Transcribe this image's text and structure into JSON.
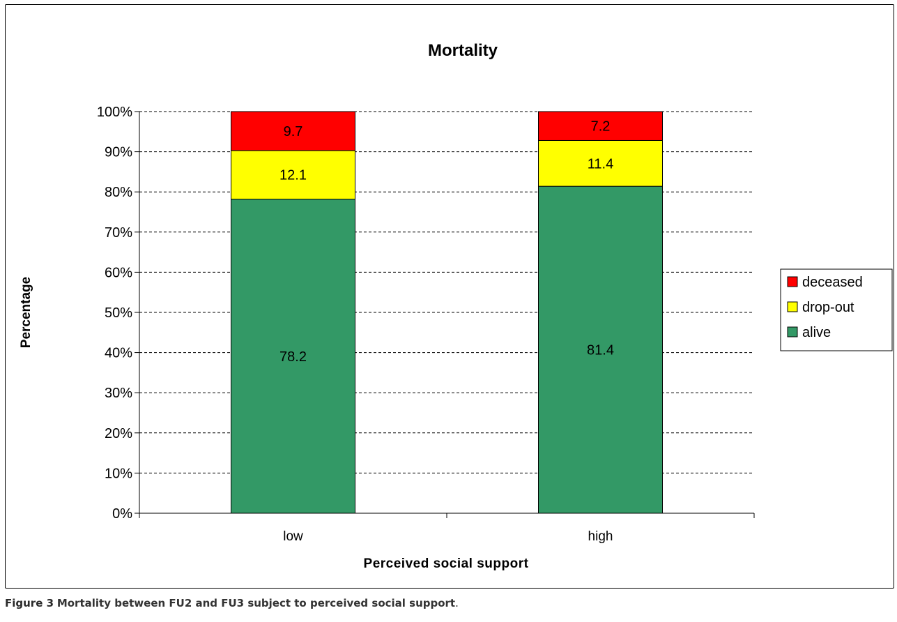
{
  "chart_data": {
    "type": "bar",
    "stacked": true,
    "percent_axis": true,
    "title": "Mortality",
    "xlabel": "Perceived social support",
    "ylabel": "Percentage",
    "categories": [
      "low",
      "high"
    ],
    "series": [
      {
        "name": "alive",
        "values": [
          78.2,
          81.4
        ],
        "color": "#339966"
      },
      {
        "name": "drop-out",
        "values": [
          12.1,
          11.4
        ],
        "color": "#ffff00"
      },
      {
        "name": "deceased",
        "values": [
          9.7,
          7.2
        ],
        "color": "#ff0000"
      }
    ],
    "ylim": [
      0,
      100
    ],
    "yticks": [
      "0%",
      "10%",
      "20%",
      "30%",
      "40%",
      "50%",
      "60%",
      "70%",
      "80%",
      "90%",
      "100%"
    ],
    "grid": "dashed horizontal",
    "legend_position": "right",
    "legend_order": [
      "deceased",
      "drop-out",
      "alive"
    ]
  },
  "caption": {
    "figure_label": "Figure 3",
    "text": "Mortality between FU2 and FU3 subject to perceived social support",
    "end": "."
  }
}
